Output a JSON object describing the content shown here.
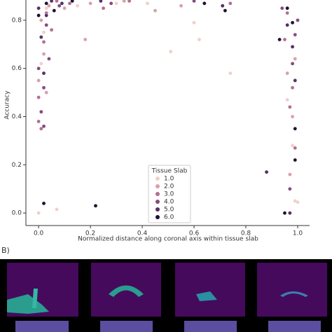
{
  "chart_data": {
    "type": "scatter",
    "x_label": "Normalized distance along coronal axis within tissue slab",
    "y_label": "Accuracy",
    "legend_title": "Tissue Slab",
    "legend_position": "lower center",
    "xlim": [
      -0.049,
      1.046
    ],
    "ylim": [
      -0.052,
      0.884
    ],
    "xticks": [
      {
        "value": 0,
        "label": "0.0"
      },
      {
        "value": 0.2,
        "label": "0.2"
      },
      {
        "value": 0.4,
        "label": "0.4"
      },
      {
        "value": 0.6,
        "label": "0.6"
      },
      {
        "value": 0.8,
        "label": "0.8"
      },
      {
        "value": 1,
        "label": "1.0"
      }
    ],
    "yticks": [
      {
        "value": 0,
        "label": "0.0"
      },
      {
        "value": 0.2,
        "label": "0.2"
      },
      {
        "value": 0.4,
        "label": "0.4"
      },
      {
        "value": 0.6,
        "label": "0.6"
      },
      {
        "value": 0.8,
        "label": "0.8"
      }
    ],
    "series": [
      {
        "name": "1.0",
        "color": "#efd0c8",
        "x": [
          0.0,
          0.07,
          0.51,
          0.62,
          0.74,
          0.01,
          0.02,
          0.15,
          0.3,
          0.99,
          1.0,
          0.98,
          0.96,
          0.6,
          0.42,
          0.03
        ],
        "values": [
          0.0,
          0.015,
          0.67,
          0.72,
          0.58,
          0.62,
          0.75,
          0.86,
          0.87,
          0.05,
          0.045,
          0.28,
          0.47,
          0.79,
          0.87,
          0.85
        ]
      },
      {
        "name": "2.0",
        "color": "#d8a0aa",
        "x": [
          0.01,
          0.02,
          0.0,
          0.04,
          0.1,
          0.2,
          0.33,
          0.97,
          0.98,
          0.96,
          0.99,
          0.55,
          0.45,
          0.03,
          0.18
        ],
        "values": [
          0.8,
          0.66,
          0.55,
          0.86,
          0.85,
          0.87,
          0.88,
          0.16,
          0.4,
          0.58,
          0.64,
          0.86,
          0.84,
          0.5,
          0.72
        ]
      },
      {
        "name": "3.0",
        "color": "#b36f92",
        "x": [
          0.0,
          0.01,
          0.02,
          0.03,
          0.05,
          0.12,
          0.25,
          0.35,
          0.97,
          0.98,
          0.99,
          0.96,
          0.0,
          0.07,
          0.74,
          0.95
        ],
        "values": [
          0.38,
          0.35,
          0.71,
          0.83,
          0.76,
          0.87,
          0.85,
          0.88,
          0.44,
          0.52,
          0.27,
          0.83,
          0.48,
          0.88,
          0.87,
          0.72
        ]
      },
      {
        "name": "4.0",
        "color": "#874a7e",
        "x": [
          0.0,
          0.01,
          0.02,
          0.04,
          0.03,
          0.08,
          0.98,
          0.97,
          0.99,
          1.0,
          0.94,
          0.28,
          0.6,
          0.02
        ],
        "values": [
          0.6,
          0.42,
          0.52,
          0.64,
          0.78,
          0.86,
          0.62,
          0.1,
          0.74,
          0.8,
          0.85,
          0.87,
          0.88,
          0.36
        ]
      },
      {
        "name": "5.0",
        "color": "#562f63",
        "x": [
          0.01,
          0.02,
          0.03,
          0.0,
          0.05,
          0.09,
          0.88,
          0.97,
          0.99,
          0.96,
          0.98,
          0.71,
          0.24
        ],
        "values": [
          0.73,
          0.58,
          0.82,
          0.85,
          0.88,
          0.87,
          0.17,
          0.0,
          0.55,
          0.78,
          0.69,
          0.86,
          0.88
        ]
      },
      {
        "name": "6.0",
        "color": "#1e1230",
        "x": [
          0.22,
          0.02,
          0.0,
          0.03,
          0.06,
          0.13,
          0.95,
          0.99,
          0.99,
          0.98,
          0.93,
          0.96,
          0.72,
          0.64
        ],
        "values": [
          0.03,
          0.04,
          0.82,
          0.87,
          0.84,
          0.88,
          0.0,
          0.22,
          0.35,
          0.79,
          0.72,
          0.85,
          0.84,
          0.87
        ]
      }
    ]
  },
  "panel_label": "B)"
}
